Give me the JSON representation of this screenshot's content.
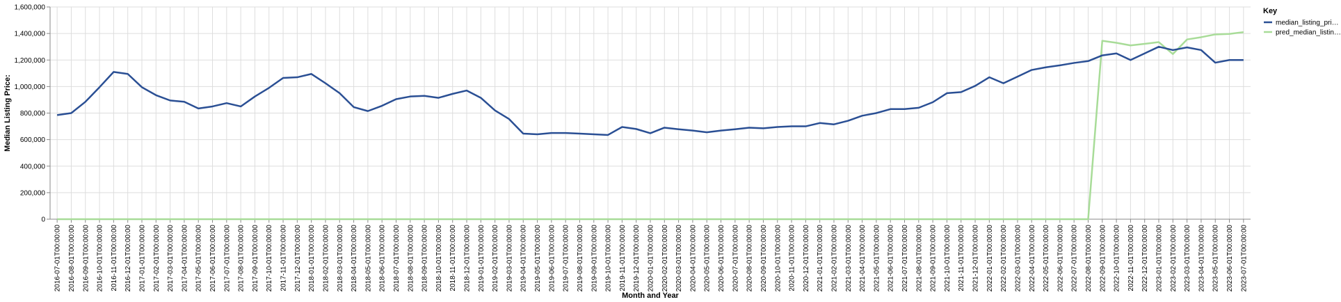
{
  "chart_data": {
    "type": "line",
    "xlabel": "Month and Year",
    "ylabel": "Median Listing Price:",
    "ylim": [
      0,
      1600000
    ],
    "yticks": [
      "0",
      "200,000",
      "400,000",
      "600,000",
      "800,000",
      "1,000,000",
      "1,200,000",
      "1,400,000",
      "1,600,000"
    ],
    "grid": true,
    "legend": {
      "title": "Key",
      "position": "right"
    },
    "x": [
      "2016-07-01T00:00:00",
      "2016-08-01T00:00:00",
      "2016-09-01T00:00:00",
      "2016-10-01T00:00:00",
      "2016-11-01T00:00:00",
      "2016-12-01T00:00:00",
      "2017-01-01T00:00:00",
      "2017-02-01T00:00:00",
      "2017-03-01T00:00:00",
      "2017-04-01T00:00:00",
      "2017-05-01T00:00:00",
      "2017-06-01T00:00:00",
      "2017-07-01T00:00:00",
      "2017-08-01T00:00:00",
      "2017-09-01T00:00:00",
      "2017-10-01T00:00:00",
      "2017-11-01T00:00:00",
      "2017-12-01T00:00:00",
      "2018-01-01T00:00:00",
      "2018-02-01T00:00:00",
      "2018-03-01T00:00:00",
      "2018-04-01T00:00:00",
      "2018-05-01T00:00:00",
      "2018-06-01T00:00:00",
      "2018-07-01T00:00:00",
      "2018-08-01T00:00:00",
      "2018-09-01T00:00:00",
      "2018-10-01T00:00:00",
      "2018-11-01T00:00:00",
      "2018-12-01T00:00:00",
      "2019-01-01T00:00:00",
      "2019-02-01T00:00:00",
      "2019-03-01T00:00:00",
      "2019-04-01T00:00:00",
      "2019-05-01T00:00:00",
      "2019-06-01T00:00:00",
      "2019-07-01T00:00:00",
      "2019-08-01T00:00:00",
      "2019-09-01T00:00:00",
      "2019-10-01T00:00:00",
      "2019-11-01T00:00:00",
      "2019-12-01T00:00:00",
      "2020-01-01T00:00:00",
      "2020-02-01T00:00:00",
      "2020-03-01T00:00:00",
      "2020-04-01T00:00:00",
      "2020-05-01T00:00:00",
      "2020-06-01T00:00:00",
      "2020-07-01T00:00:00",
      "2020-08-01T00:00:00",
      "2020-09-01T00:00:00",
      "2020-10-01T00:00:00",
      "2020-11-01T00:00:00",
      "2020-12-01T00:00:00",
      "2021-01-01T00:00:00",
      "2021-02-01T00:00:00",
      "2021-03-01T00:00:00",
      "2021-04-01T00:00:00",
      "2021-05-01T00:00:00",
      "2021-06-01T00:00:00",
      "2021-07-01T00:00:00",
      "2021-08-01T00:00:00",
      "2021-09-01T00:00:00",
      "2021-10-01T00:00:00",
      "2021-11-01T00:00:00",
      "2021-12-01T00:00:00",
      "2022-01-01T00:00:00",
      "2022-02-01T00:00:00",
      "2022-03-01T00:00:00",
      "2022-04-01T00:00:00",
      "2022-05-01T00:00:00",
      "2022-06-01T00:00:00",
      "2022-07-01T00:00:00",
      "2022-08-01T00:00:00",
      "2022-09-01T00:00:00",
      "2022-10-01T00:00:00",
      "2022-11-01T00:00:00",
      "2022-12-01T00:00:00",
      "2023-01-01T00:00:00",
      "2023-02-01T00:00:00",
      "2023-03-01T00:00:00",
      "2023-04-01T00:00:00",
      "2023-05-01T00:00:00",
      "2023-06-01T00:00:00",
      "2023-07-01T00:00:00"
    ],
    "series": [
      {
        "name": "median_listing_pri…",
        "color": "#2a4f94",
        "values": [
          785000,
          800000,
          885000,
          995000,
          1110000,
          1095000,
          995000,
          935000,
          895000,
          885000,
          835000,
          850000,
          875000,
          850000,
          925000,
          990000,
          1065000,
          1070000,
          1095000,
          1025000,
          950000,
          845000,
          815000,
          855000,
          905000,
          925000,
          930000,
          915000,
          945000,
          970000,
          915000,
          820000,
          755000,
          645000,
          640000,
          650000,
          650000,
          645000,
          640000,
          635000,
          695000,
          680000,
          648000,
          690000,
          678000,
          668000,
          655000,
          668000,
          678000,
          690000,
          685000,
          695000,
          700000,
          700000,
          725000,
          715000,
          742000,
          780000,
          800000,
          830000,
          830000,
          840000,
          882000,
          950000,
          958000,
          1005000,
          1070000,
          1025000,
          1075000,
          1125000,
          1145000,
          1160000,
          1178000,
          1192000,
          1235000,
          1250000,
          1200000,
          1250000,
          1300000,
          1275000,
          1295000,
          1275000,
          1180000,
          1200000,
          1200000
        ]
      },
      {
        "name": "pred_median_listin…",
        "color": "#a8dc98",
        "values": [
          0,
          0,
          0,
          0,
          0,
          0,
          0,
          0,
          0,
          0,
          0,
          0,
          0,
          0,
          0,
          0,
          0,
          0,
          0,
          0,
          0,
          0,
          0,
          0,
          0,
          0,
          0,
          0,
          0,
          0,
          0,
          0,
          0,
          0,
          0,
          0,
          0,
          0,
          0,
          0,
          0,
          0,
          0,
          0,
          0,
          0,
          0,
          0,
          0,
          0,
          0,
          0,
          0,
          0,
          0,
          0,
          0,
          0,
          0,
          0,
          0,
          0,
          0,
          0,
          0,
          0,
          0,
          0,
          0,
          0,
          0,
          0,
          0,
          0,
          1345000,
          1330000,
          1310000,
          1322000,
          1335000,
          1245000,
          1355000,
          1372000,
          1393000,
          1397000,
          1410000
        ]
      }
    ]
  }
}
